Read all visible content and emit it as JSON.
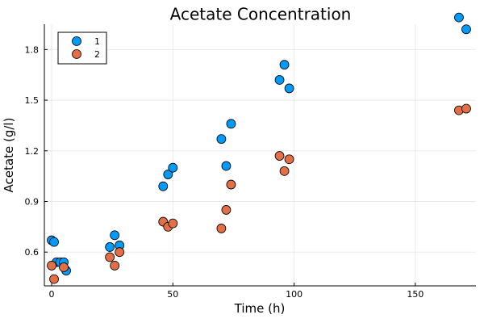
{
  "chart_data": {
    "type": "scatter",
    "title": "Acetate Concentration",
    "xlabel": "Time (h)",
    "ylabel": "Acetate (g/l)",
    "xlim": [
      -3,
      175
    ],
    "ylim": [
      0.4,
      1.95
    ],
    "x_ticks": [
      0,
      50,
      100,
      150
    ],
    "y_ticks": [
      0.6,
      0.9,
      1.2,
      1.5,
      1.8
    ],
    "grid": true,
    "legend_position": "top-left",
    "series": [
      {
        "name": "1",
        "color": "#009AFA",
        "points": [
          [
            0,
            0.67
          ],
          [
            1,
            0.66
          ],
          [
            2,
            0.54
          ],
          [
            3.5,
            0.54
          ],
          [
            5,
            0.54
          ],
          [
            6,
            0.49
          ],
          [
            24,
            0.63
          ],
          [
            26,
            0.7
          ],
          [
            28,
            0.64
          ],
          [
            46,
            0.99
          ],
          [
            48,
            1.06
          ],
          [
            50,
            1.1
          ],
          [
            70,
            1.27
          ],
          [
            72,
            1.11
          ],
          [
            74,
            1.36
          ],
          [
            94,
            1.62
          ],
          [
            96,
            1.71
          ],
          [
            98,
            1.57
          ],
          [
            168,
            1.99
          ],
          [
            171,
            1.92
          ]
        ]
      },
      {
        "name": "2",
        "color": "#E26F46",
        "points": [
          [
            0,
            0.52
          ],
          [
            1,
            0.44
          ],
          [
            5,
            0.51
          ],
          [
            24,
            0.57
          ],
          [
            26,
            0.52
          ],
          [
            28,
            0.6
          ],
          [
            46,
            0.78
          ],
          [
            48,
            0.75
          ],
          [
            50,
            0.77
          ],
          [
            70,
            0.74
          ],
          [
            72,
            0.85
          ],
          [
            74,
            1.0
          ],
          [
            94,
            1.17
          ],
          [
            96,
            1.08
          ],
          [
            98,
            1.15
          ],
          [
            168,
            1.44
          ],
          [
            171,
            1.45
          ]
        ]
      }
    ]
  }
}
